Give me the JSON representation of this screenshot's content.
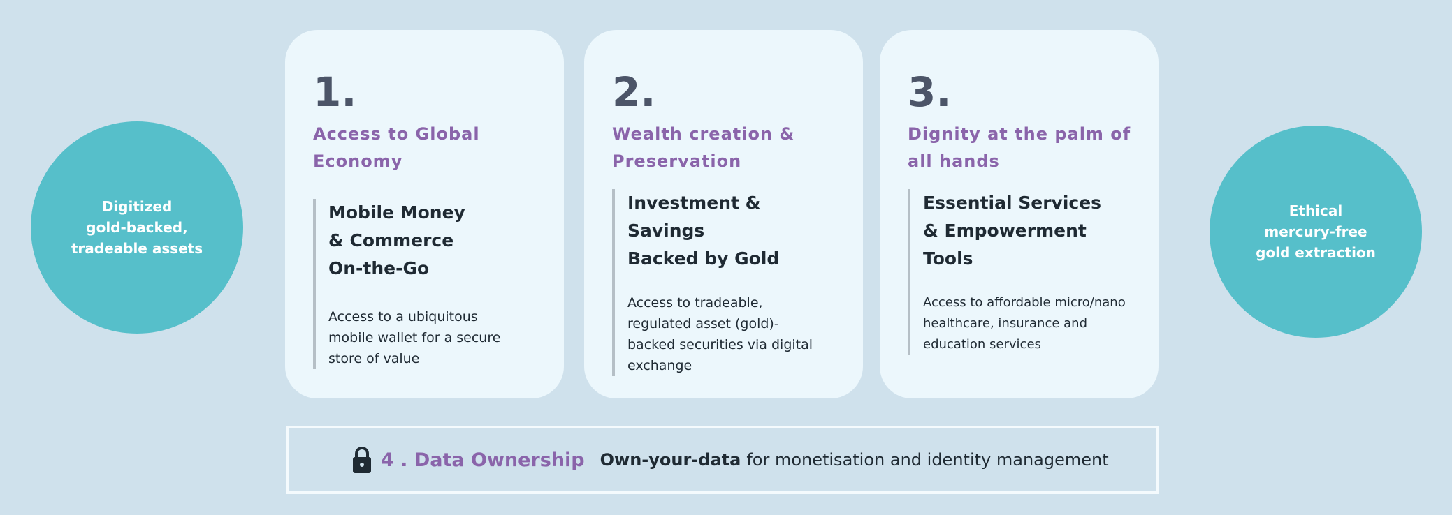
{
  "colors": {
    "background": "#cfe1ec",
    "card": "#ecf7fc",
    "teal": "#56bfca",
    "purple": "#8a64aa",
    "text": "#1f2a33",
    "number": "#4c5568"
  },
  "left_circle": {
    "lines": [
      "Digitized",
      "gold-backed,",
      "tradeable assets"
    ]
  },
  "right_circle": {
    "lines": [
      "Ethical",
      "mercury-free",
      "gold extraction"
    ]
  },
  "cards": [
    {
      "number": "1.",
      "heading": [
        "Access to Global",
        "Economy"
      ],
      "subheading": [
        "Mobile Money",
        "& Commerce",
        "On-the-Go"
      ],
      "body": [
        "Access to a ubiquitous",
        "mobile wallet for a secure",
        "store of value"
      ]
    },
    {
      "number": "2.",
      "heading": [
        "Wealth creation &",
        "Preservation"
      ],
      "subheading": [
        "Investment & Savings",
        "Backed by Gold"
      ],
      "body": [
        "Access to tradeable,",
        "regulated asset (gold)-",
        "backed securities via digital",
        "exchange"
      ]
    },
    {
      "number": "3.",
      "heading": [
        "Dignity at the palm of",
        "all hands"
      ],
      "subheading": [
        "Essential Services",
        "& Empowerment Tools"
      ],
      "body": [
        "Access to affordable micro/nano",
        "healthcare, insurance and",
        "education services"
      ]
    }
  ],
  "data_ownership": {
    "icon": "lock-icon",
    "title": "4 . Data Ownership",
    "bold": "Own-your-data",
    "text": "for monetisation and identity management"
  }
}
